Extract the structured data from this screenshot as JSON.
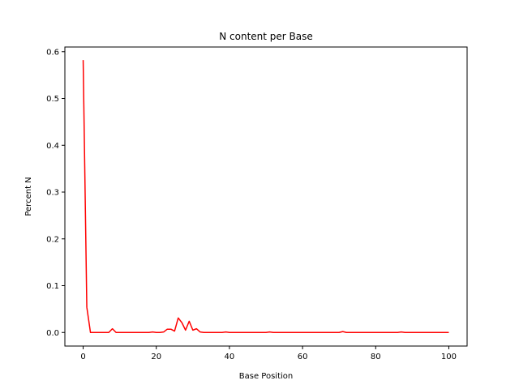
{
  "chart_data": {
    "type": "line",
    "title": "N content per Base",
    "xlabel": "Base Position",
    "ylabel": "Percent N",
    "xlim": [
      -5,
      105
    ],
    "ylim": [
      -0.029,
      0.61
    ],
    "xticks": [
      0,
      20,
      40,
      60,
      80,
      100
    ],
    "yticks": [
      0.0,
      0.1,
      0.2,
      0.3,
      0.4,
      0.5,
      0.6
    ],
    "xtick_labels": [
      "0",
      "20",
      "40",
      "60",
      "80",
      "100"
    ],
    "ytick_labels": [
      "0.0",
      "0.1",
      "0.2",
      "0.3",
      "0.4",
      "0.5",
      "0.6"
    ],
    "grid": false,
    "series": [
      {
        "color": "#ff0000",
        "x": [
          0,
          1,
          2,
          3,
          4,
          5,
          6,
          7,
          8,
          9,
          10,
          11,
          12,
          13,
          14,
          15,
          16,
          17,
          18,
          19,
          20,
          21,
          22,
          23,
          24,
          25,
          26,
          27,
          28,
          29,
          30,
          31,
          32,
          33,
          34,
          35,
          36,
          37,
          38,
          39,
          40,
          41,
          42,
          43,
          44,
          45,
          46,
          47,
          48,
          49,
          50,
          51,
          52,
          53,
          54,
          55,
          56,
          57,
          58,
          59,
          60,
          61,
          62,
          63,
          64,
          65,
          66,
          67,
          68,
          69,
          70,
          71,
          72,
          73,
          74,
          75,
          76,
          77,
          78,
          79,
          80,
          81,
          82,
          83,
          84,
          85,
          86,
          87,
          88,
          89,
          90,
          91,
          92,
          93,
          94,
          95,
          96,
          97,
          98,
          99,
          100
        ],
        "y": [
          0.582,
          0.054,
          0.0,
          0.0,
          0.0,
          0.0,
          0.0,
          0.0,
          0.008,
          0.0,
          0.0,
          0.0,
          0.0,
          0.0,
          0.0,
          0.0,
          0.0,
          0.0,
          0.0,
          0.001,
          0.0,
          0.0,
          0.001,
          0.007,
          0.007,
          0.003,
          0.031,
          0.021,
          0.005,
          0.024,
          0.005,
          0.008,
          0.001,
          0.0,
          0.0,
          0.0,
          0.0,
          0.0,
          0.0,
          0.001,
          0.0,
          0.0,
          0.0,
          0.0,
          0.0,
          0.0,
          0.0,
          0.0,
          0.0,
          0.0,
          0.0,
          0.001,
          0.0,
          0.0,
          0.0,
          0.0,
          0.0,
          0.0,
          0.0,
          0.0,
          0.0,
          0.0,
          0.0,
          0.0,
          0.0,
          0.0,
          0.0,
          0.0,
          0.0,
          0.0,
          0.0,
          0.002,
          0.0,
          0.0,
          0.0,
          0.0,
          0.0,
          0.0,
          0.0,
          0.0,
          0.0,
          0.0,
          0.0,
          0.0,
          0.0,
          0.0,
          0.0,
          0.001,
          0.0,
          0.0,
          0.0,
          0.0,
          0.0,
          0.0,
          0.0,
          0.0,
          0.0,
          0.0,
          0.0,
          0.0,
          0.0
        ]
      }
    ]
  }
}
